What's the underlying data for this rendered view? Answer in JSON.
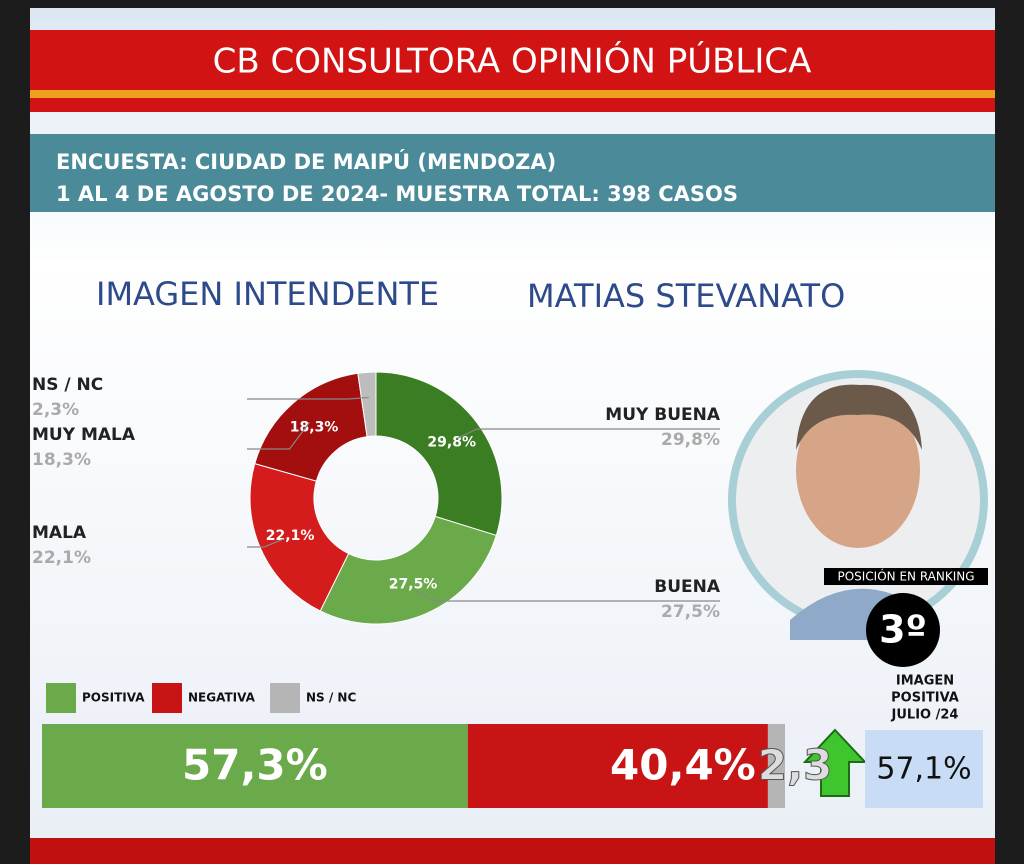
{
  "header": {
    "title": "CB CONSULTORA OPINIÓN PÚBLICA",
    "survey": [
      "ENCUESTA: CIUDAD DE MAIPÚ (MENDOZA)",
      "1 AL 4 DE AGOSTO DE 2024- MUESTRA TOTAL: 398 CASOS"
    ]
  },
  "chart_data": [
    {
      "type": "donut",
      "title": "IMAGEN INTENDENTE",
      "subtitle": "MATIAS STEVANATO",
      "categories": [
        "MUY BUENA",
        "BUENA",
        "MALA",
        "MUY MALA",
        "NS / NC"
      ],
      "values": [
        29.8,
        27.5,
        22.1,
        18.3,
        2.3
      ],
      "value_labels": [
        "29,8%",
        "27,5%",
        "22,1%",
        "18,3%",
        "2,3%"
      ],
      "colors": [
        "#3a7d22",
        "#6aaa4a",
        "#d41c1c",
        "#a30e0e",
        "#bdbdbd"
      ]
    },
    {
      "type": "stacked-bar",
      "series": [
        {
          "name": "POSITIVA",
          "color": "#6aaa4a",
          "values": [
            57.3
          ],
          "value_labels": [
            "57,3%"
          ]
        },
        {
          "name": "NEGATIVA",
          "color": "#c81414",
          "values": [
            40.4
          ],
          "value_labels": [
            "40,4%"
          ]
        },
        {
          "name": "NS / NC",
          "color": "#b5b5b5",
          "values": [
            2.3
          ],
          "value_labels": [
            "2,3"
          ]
        }
      ],
      "xlim": [
        0,
        100
      ]
    }
  ],
  "ranking": {
    "label": "POSICIÓN EN RANKING",
    "position": "3º"
  },
  "previous": {
    "label": [
      "IMAGEN",
      "POSITIVA",
      "JULIO /24"
    ],
    "value_label": "57,1%"
  }
}
